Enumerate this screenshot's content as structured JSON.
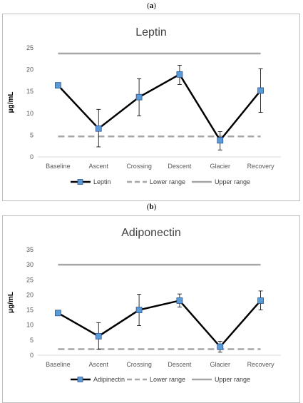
{
  "panels": [
    {
      "label_open": "(",
      "label_letter": "a",
      "label_close": ")"
    },
    {
      "label_open": "(",
      "label_letter": "b",
      "label_close": ")"
    }
  ],
  "chart_data": [
    {
      "type": "line",
      "title": "Leptin",
      "ylabel": "μg/mL",
      "xlabel": "",
      "categories": [
        "Baseline",
        "Ascent",
        "Crossing",
        "Descent",
        "Glacier",
        "Recovery"
      ],
      "ylim": [
        0,
        25
      ],
      "yticks": [
        0,
        5,
        10,
        15,
        20,
        25
      ],
      "grid": false,
      "legend_position": "bottom",
      "series": [
        {
          "name": "Leptin",
          "values": [
            16.4,
            6.5,
            13.7,
            18.9,
            3.8,
            15.2
          ],
          "err_low": [
            16.4,
            2.3,
            9.4,
            16.6,
            1.6,
            10.2
          ],
          "err_high": [
            16.4,
            10.9,
            17.9,
            21.0,
            5.8,
            20.2
          ],
          "color": "#000000",
          "marker_color": "#5b9bd5"
        },
        {
          "name": "Lower range",
          "values": [
            4.7,
            4.7,
            4.7,
            4.7,
            4.7,
            4.7
          ],
          "color": "#a6a6a6",
          "style": "dashed"
        },
        {
          "name": "Upper range",
          "values": [
            23.7,
            23.7,
            23.7,
            23.7,
            23.7,
            23.7
          ],
          "color": "#a6a6a6",
          "style": "solid"
        }
      ]
    },
    {
      "type": "line",
      "title": "Adiponectin",
      "ylabel": "μg/mL",
      "xlabel": "",
      "categories": [
        "Baseline",
        "Ascent",
        "Crossing",
        "Descent",
        "Glacier",
        "Recovery"
      ],
      "ylim": [
        0,
        35
      ],
      "yticks": [
        0,
        5,
        10,
        15,
        20,
        25,
        30,
        35
      ],
      "grid": false,
      "legend_position": "bottom",
      "series": [
        {
          "name": "Adipinectin",
          "values": [
            14.0,
            6.3,
            15.0,
            18.1,
            2.8,
            18.1
          ],
          "err_low": [
            14.0,
            2.0,
            9.8,
            16.0,
            1.0,
            15.0
          ],
          "err_high": [
            14.0,
            10.8,
            20.2,
            20.3,
            4.6,
            21.3
          ],
          "color": "#000000",
          "marker_color": "#5b9bd5"
        },
        {
          "name": "Lower range",
          "values": [
            2.0,
            2.0,
            2.0,
            2.0,
            2.0,
            2.0
          ],
          "color": "#a6a6a6",
          "style": "dashed"
        },
        {
          "name": "Upper range",
          "values": [
            30.0,
            30.0,
            30.0,
            30.0,
            30.0,
            30.0
          ],
          "color": "#a6a6a6",
          "style": "solid"
        }
      ]
    }
  ]
}
